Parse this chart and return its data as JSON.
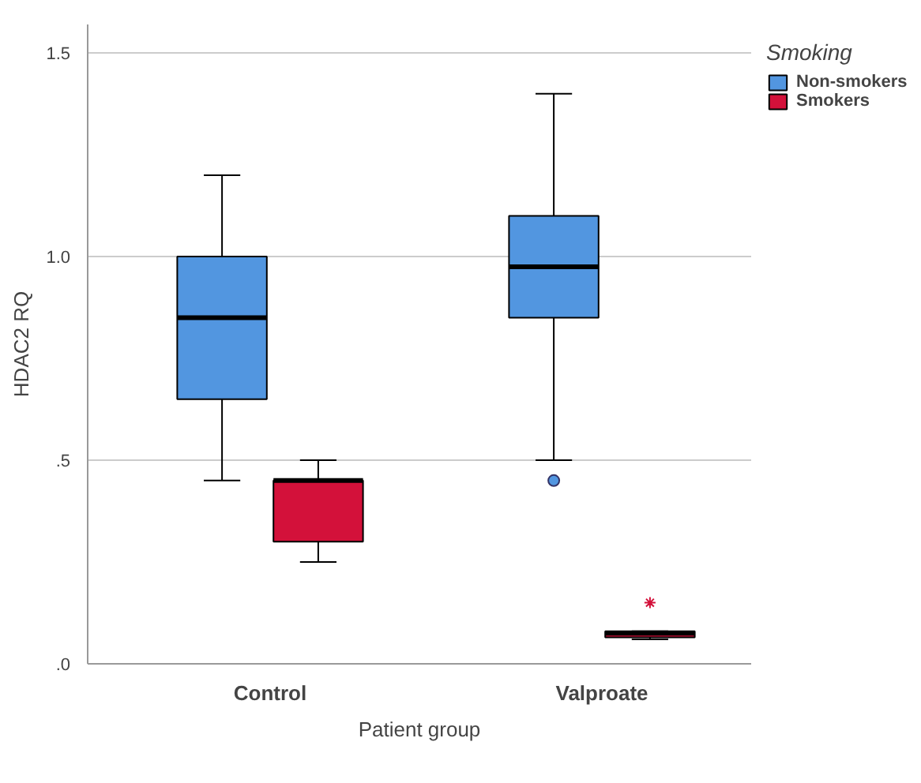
{
  "chart_data": {
    "type": "box",
    "xlabel": "Patient group",
    "ylabel": "HDAC2 RQ",
    "legend_title": "Smoking",
    "legend": "top right",
    "grid": "y",
    "categories": [
      "Control",
      "Valproate"
    ],
    "ylim": [
      0,
      1.57
    ],
    "yticks": [
      {
        "value": 0,
        "label": ".0"
      },
      {
        "value": 0.5,
        "label": ".5"
      },
      {
        "value": 1.0,
        "label": "1.0"
      },
      {
        "value": 1.5,
        "label": "1.5"
      }
    ],
    "series": [
      {
        "name": "Non-smokers",
        "color": "#5296e0",
        "marker": "circle",
        "boxes": [
          {
            "low": 0.45,
            "q1": 0.65,
            "median": 0.85,
            "q3": 1.0,
            "high": 1.2
          },
          {
            "low": 0.5,
            "q1": 0.85,
            "median": 0.975,
            "q3": 1.1,
            "high": 1.4,
            "outliers": [
              0.45
            ]
          }
        ]
      },
      {
        "name": "Smokers",
        "color": "#d3113a",
        "marker": "star",
        "boxes": [
          {
            "low": 0.25,
            "q1": 0.3,
            "median": 0.45,
            "q3": 0.45,
            "high": 0.5
          },
          {
            "low": 0.06,
            "q1": 0.065,
            "median": 0.075,
            "q3": 0.08,
            "high": 0.08,
            "outliers": [
              0.15
            ]
          }
        ]
      }
    ]
  }
}
